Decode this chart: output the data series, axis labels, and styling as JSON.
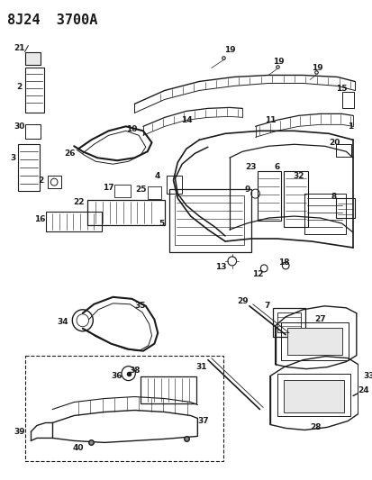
{
  "title": "8J24  3700A",
  "bg_color": "#ffffff",
  "title_fontsize": 11,
  "fig_width": 4.14,
  "fig_height": 5.33,
  "line_color": "#1a1a1a"
}
